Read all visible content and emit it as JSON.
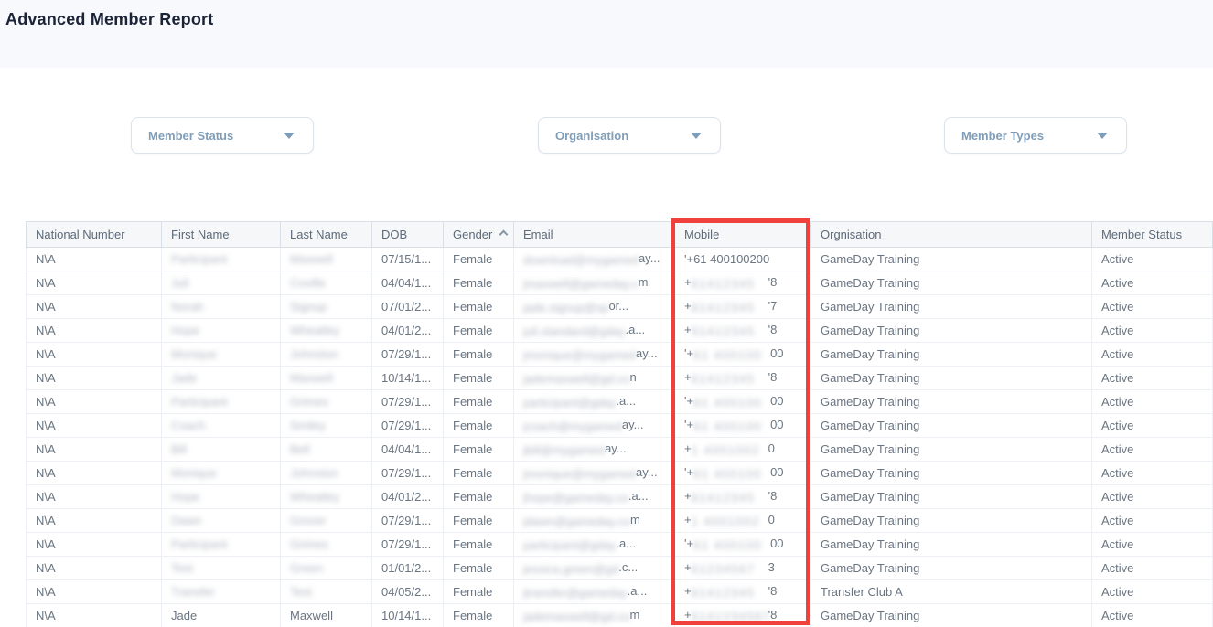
{
  "page": {
    "title": "Advanced Member Report"
  },
  "colors": {
    "highlight_red": "#f0413c",
    "filter_text": "#7f9db8",
    "title_text": "#1b2337"
  },
  "filters": [
    {
      "label": "Member Status"
    },
    {
      "label": "Organisation"
    },
    {
      "label": "Member Types"
    }
  ],
  "table": {
    "columns": [
      {
        "key": "national",
        "label": "National Number",
        "sort": ""
      },
      {
        "key": "first",
        "label": "First Name",
        "sort": ""
      },
      {
        "key": "last",
        "label": "Last Name",
        "sort": ""
      },
      {
        "key": "dob",
        "label": "DOB",
        "sort": ""
      },
      {
        "key": "gender",
        "label": "Gender",
        "sort": "asc"
      },
      {
        "key": "email",
        "label": "Email",
        "sort": ""
      },
      {
        "key": "mobile",
        "label": "Mobile",
        "sort": ""
      },
      {
        "key": "org",
        "label": "Orgnisation",
        "sort": ""
      },
      {
        "key": "status",
        "label": "Member Status",
        "sort": ""
      }
    ],
    "rows": [
      {
        "national": "N\\A",
        "first": "Participant",
        "first_blurred": true,
        "last": "Maxwell",
        "last_blurred": true,
        "dob": "07/15/1...",
        "gender": "Female",
        "email_blur": "download@mygamed",
        "email_suffix": "ay...",
        "mobile_prefix": "'+61 400100200",
        "mobile_blur": "",
        "mobile_suffix": "",
        "org": "GameDay Training",
        "status": "Active"
      },
      {
        "national": "N\\A",
        "first": "Juli",
        "first_blurred": true,
        "last": "Coville",
        "last_blurred": true,
        "dob": "04/04/1...",
        "gender": "Female",
        "email_blur": "jmaxwell@gameday.c",
        "email_suffix": "m",
        "mobile_prefix": "+",
        "mobile_blur": "61412345",
        "mobile_suffix": "'8",
        "org": "GameDay Training",
        "status": "Active"
      },
      {
        "national": "N\\A",
        "first": "Norah",
        "first_blurred": true,
        "last": "Signup",
        "last_blurred": true,
        "dob": "07/01/2...",
        "gender": "Female",
        "email_blur": "jade.signup@sp",
        "email_suffix": "or...",
        "mobile_prefix": "+",
        "mobile_blur": "61412345",
        "mobile_suffix": "'7",
        "org": "GameDay Training",
        "status": "Active"
      },
      {
        "national": "N\\A",
        "first": "Hope",
        "first_blurred": true,
        "last": "Wheatley",
        "last_blurred": true,
        "dob": "04/01/2...",
        "gender": "Female",
        "email_blur": "juli.standard@gday",
        "email_suffix": ".a...",
        "mobile_prefix": "+",
        "mobile_blur": "61412345",
        "mobile_suffix": "'8",
        "org": "GameDay Training",
        "status": "Active"
      },
      {
        "national": "N\\A",
        "first": "Monique",
        "first_blurred": true,
        "last": "Johnston",
        "last_blurred": true,
        "dob": "07/29/1...",
        "gender": "Female",
        "email_blur": "jmonique@mygamed",
        "email_suffix": "ay...",
        "mobile_prefix": "'+",
        "mobile_blur": "61 400100",
        "mobile_suffix": "00",
        "org": "GameDay Training",
        "status": "Active"
      },
      {
        "national": "N\\A",
        "first": "Jade",
        "first_blurred": true,
        "last": "Maxwell",
        "last_blurred": true,
        "dob": "10/14/1...",
        "gender": "Female",
        "email_blur": "jademaxwell@gd.co",
        "email_suffix": "n",
        "mobile_prefix": "+",
        "mobile_blur": "61412345",
        "mobile_suffix": "'8",
        "org": "GameDay Training",
        "status": "Active"
      },
      {
        "national": "N\\A",
        "first": "Participant",
        "first_blurred": true,
        "last": "Grimes",
        "last_blurred": true,
        "dob": "07/29/1...",
        "gender": "Female",
        "email_blur": "participant@gday",
        "email_suffix": ".a...",
        "mobile_prefix": "'+",
        "mobile_blur": "61 400100",
        "mobile_suffix": "00",
        "org": "GameDay Training",
        "status": "Active"
      },
      {
        "national": "N\\A",
        "first": "Coach",
        "first_blurred": true,
        "last": "Smiley",
        "last_blurred": true,
        "dob": "07/29/1...",
        "gender": "Female",
        "email_blur": "jcoach@mygamed",
        "email_suffix": "ay...",
        "mobile_prefix": "'+",
        "mobile_blur": "61 400100",
        "mobile_suffix": "00",
        "org": "GameDay Training",
        "status": "Active"
      },
      {
        "national": "N\\A",
        "first": "Bill",
        "first_blurred": true,
        "last": "Bell",
        "last_blurred": true,
        "dob": "04/04/1...",
        "gender": "Female",
        "email_blur": "jbill@mygamed",
        "email_suffix": "ay...",
        "mobile_prefix": "+",
        "mobile_blur": "1 4001002",
        "mobile_suffix": "0",
        "org": "GameDay Training",
        "status": "Active"
      },
      {
        "national": "N\\A",
        "first": "Monique",
        "first_blurred": true,
        "last": "Johnston",
        "last_blurred": true,
        "dob": "07/29/1...",
        "gender": "Female",
        "email_blur": "jmonique@mygamed",
        "email_suffix": "ay...",
        "mobile_prefix": "'+",
        "mobile_blur": "61 400100",
        "mobile_suffix": "00",
        "org": "GameDay Training",
        "status": "Active"
      },
      {
        "national": "N\\A",
        "first": "Hope",
        "first_blurred": true,
        "last": "Wheatley",
        "last_blurred": true,
        "dob": "04/01/2...",
        "gender": "Female",
        "email_blur": "jhope@gameday.co",
        "email_suffix": ".a...",
        "mobile_prefix": "+",
        "mobile_blur": "61412345",
        "mobile_suffix": "'8",
        "org": "GameDay Training",
        "status": "Active"
      },
      {
        "national": "N\\A",
        "first": "Dawn",
        "first_blurred": true,
        "last": "Grover",
        "last_blurred": true,
        "dob": "07/29/1...",
        "gender": "Female",
        "email_blur": "jdawn@gameday.co",
        "email_suffix": "m",
        "mobile_prefix": "+",
        "mobile_blur": "1 4001002",
        "mobile_suffix": "0",
        "org": "GameDay Training",
        "status": "Active"
      },
      {
        "national": "N\\A",
        "first": "Participant",
        "first_blurred": true,
        "last": "Grimes",
        "last_blurred": true,
        "dob": "07/29/1...",
        "gender": "Female",
        "email_blur": "participant@gday",
        "email_suffix": ".a...",
        "mobile_prefix": "'+",
        "mobile_blur": "61 400100",
        "mobile_suffix": "00",
        "org": "GameDay Training",
        "status": "Active"
      },
      {
        "national": "N\\A",
        "first": "Test",
        "first_blurred": true,
        "last": "Green",
        "last_blurred": true,
        "dob": "01/01/2...",
        "gender": "Female",
        "email_blur": "jessica.green@gd",
        "email_suffix": ".c...",
        "mobile_prefix": "+",
        "mobile_blur": "61234567",
        "mobile_suffix": "3",
        "org": "GameDay Training",
        "status": "Active"
      },
      {
        "national": "N\\A",
        "first": "Transfer",
        "first_blurred": true,
        "last": "Test",
        "last_blurred": true,
        "dob": "04/05/2...",
        "gender": "Female",
        "email_blur": "jtransfer@gameday",
        "email_suffix": ".a...",
        "mobile_prefix": "+",
        "mobile_blur": "61412345",
        "mobile_suffix": "'8",
        "org": "Transfer Club A",
        "status": "Active"
      },
      {
        "national": "N\\A",
        "first": "Jade",
        "first_blurred": false,
        "last": "Maxwell",
        "last_blurred": false,
        "dob": "10/14/1...",
        "gender": "Female",
        "email_blur": "jademaxwell@gd.co",
        "email_suffix": "m",
        "mobile_prefix": "+",
        "mobile_blur": "6141234567",
        "mobile_suffix": "'8",
        "org": "GameDay Training",
        "status": "Active"
      }
    ]
  }
}
